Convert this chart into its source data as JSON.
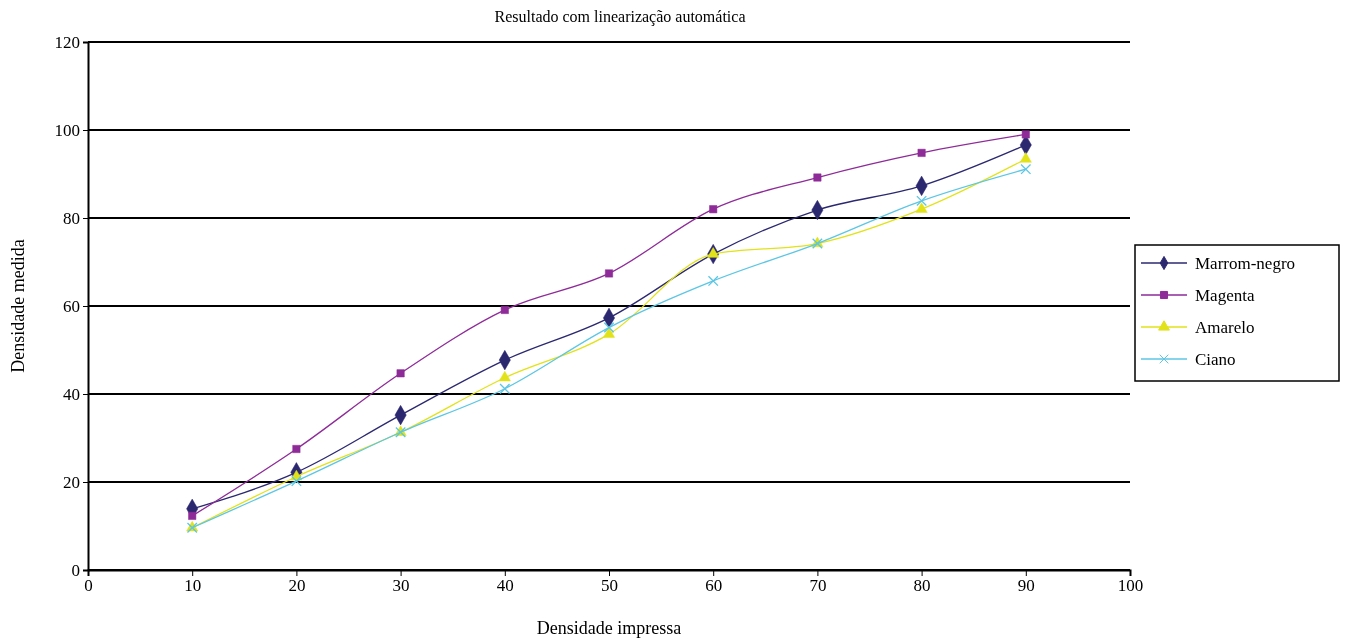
{
  "chart_data": {
    "type": "line",
    "title": "Resultado com linearização automática",
    "xlabel": "Densidade impressa",
    "ylabel": "Densidade medida",
    "x": [
      10,
      20,
      30,
      40,
      50,
      60,
      70,
      80,
      90
    ],
    "xlim": [
      0,
      100
    ],
    "xticks": [
      0,
      10,
      20,
      30,
      40,
      50,
      60,
      70,
      80,
      90,
      100
    ],
    "ylim": [
      0,
      120
    ],
    "yticks": [
      0,
      20,
      40,
      60,
      80,
      100,
      120
    ],
    "grid": "y",
    "legend": "right",
    "series": [
      {
        "name": "Marrom-negro",
        "color": "#2b2870",
        "marker": "diamond",
        "values": [
          13.9,
          22.2,
          35.2,
          47.7,
          57.3,
          71.8,
          81.8,
          87.3,
          96.6
        ]
      },
      {
        "name": "Magenta",
        "color": "#8e2b98",
        "marker": "square",
        "values": [
          12.3,
          27.5,
          44.7,
          59.1,
          67.4,
          82,
          89.2,
          94.8,
          99
        ]
      },
      {
        "name": "Amarelo",
        "color": "#e2e21a",
        "marker": "triangle",
        "values": [
          9.6,
          21.2,
          31.3,
          43.7,
          53.6,
          71.8,
          74.2,
          82,
          93.4
        ]
      },
      {
        "name": "Ciano",
        "color": "#5cc6e4",
        "marker": "cross",
        "values": [
          9.6,
          20.2,
          31.3,
          41.2,
          55.1,
          65.7,
          74.2,
          83.9,
          91.1
        ]
      }
    ]
  }
}
